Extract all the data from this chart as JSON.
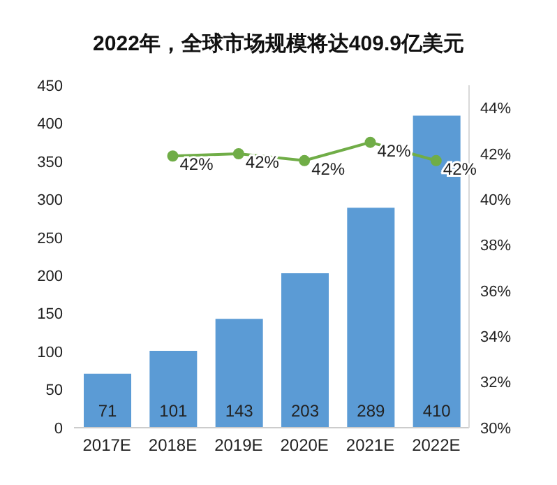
{
  "chart_data": {
    "type": "bar",
    "title": "2022年，全球市场规模将达409.9亿美元",
    "categories": [
      "2017E",
      "2018E",
      "2019E",
      "2020E",
      "2021E",
      "2022E"
    ],
    "series": [
      {
        "color": "#5b9bd5",
        "values": [
          71,
          101,
          143,
          203,
          289,
          410
        ]
      },
      {
        "type": "line",
        "axis": "y2",
        "color": "#70ad47",
        "marker": "circle",
        "values": [
          null,
          41.9,
          42.0,
          41.7,
          42.5,
          41.7
        ],
        "value_labels": [
          null,
          "42%",
          "42%",
          "42%",
          "42%",
          "42%"
        ]
      }
    ],
    "data_labels": true,
    "ylim": [
      0,
      450
    ],
    "yticks": [
      0,
      50,
      100,
      150,
      200,
      250,
      300,
      350,
      400,
      450
    ],
    "y2lim": [
      30,
      45
    ],
    "y2ticks": [
      {
        "value": 30,
        "label": "30%"
      },
      {
        "value": 32,
        "label": "32%"
      },
      {
        "value": 34,
        "label": "34%"
      },
      {
        "value": 36,
        "label": "36%"
      },
      {
        "value": 38,
        "label": "38%"
      },
      {
        "value": 40,
        "label": "40%"
      },
      {
        "value": 42,
        "label": "42%"
      },
      {
        "value": 44,
        "label": "44%"
      }
    ],
    "grid": false,
    "legend": false
  }
}
